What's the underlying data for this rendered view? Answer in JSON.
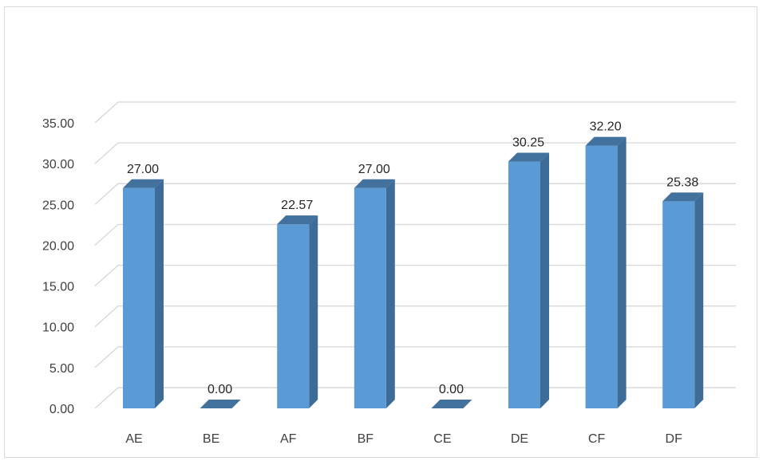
{
  "chart_data": {
    "type": "bar",
    "title": "",
    "xlabel": "",
    "ylabel": "",
    "categories": [
      "AE",
      "BE",
      "AF",
      "BF",
      "CE",
      "DE",
      "CF",
      "DF"
    ],
    "values": [
      27.0,
      0.0,
      22.57,
      27.0,
      0.0,
      30.25,
      32.2,
      25.38
    ],
    "data_labels": [
      "27.00",
      "0.00",
      "22.57",
      "27.00",
      "0.00",
      "30.25",
      "32.20",
      "25.38"
    ],
    "ylim": [
      0,
      35
    ],
    "y_ticks": [
      0,
      5,
      10,
      15,
      20,
      25,
      30,
      35
    ],
    "y_tick_labels": [
      "0.00",
      "5.00",
      "10.00",
      "15.00",
      "20.00",
      "25.00",
      "30.00",
      "35.00"
    ],
    "grid": true,
    "legend": "none",
    "style": "3d-column",
    "colors": {
      "bar_front": "#5b9bd5",
      "bar_side": "#3d6c99",
      "bar_top": "#41719c",
      "grid": "#d9d9d9",
      "text": "#404040"
    }
  }
}
